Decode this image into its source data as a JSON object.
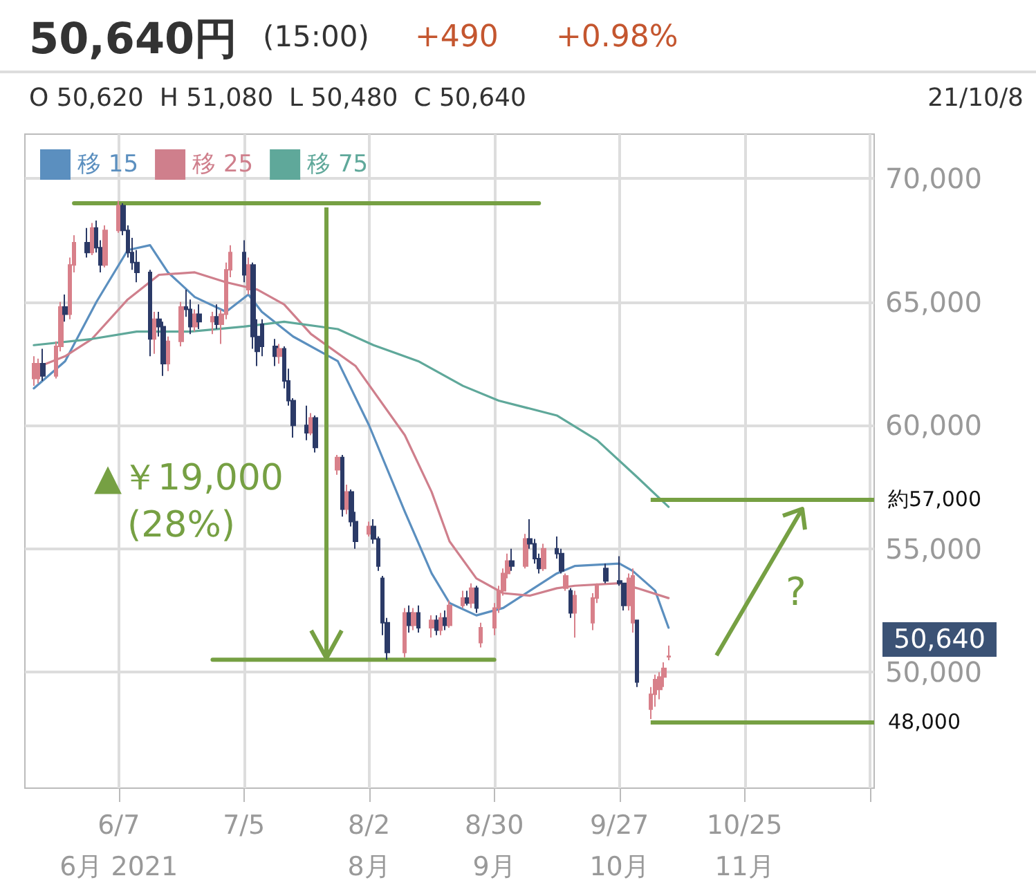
{
  "chart_data": {
    "type": "candlestick",
    "title": "50,640円",
    "subtitle": "O 50,620  H 51,080  L 50,480  C 50,640",
    "annotations": [
      "(15:00)",
      "+490",
      "+0.98%",
      "21/10/8",
      "▲￥19,000",
      "(28%)",
      "?",
      "50,640"
    ],
    "colors": [
      "#d8808a",
      "#d8808a",
      "#2b3a67",
      "#d8808a",
      "#d8808a",
      "#2b3a67",
      "#d8808a",
      "#d8808a",
      "#2b3a67",
      "#d8808a",
      "#2b3a67",
      "#2b3a67",
      "#d8808a",
      "#d8808a",
      "#2b3a67",
      "#2b3a67",
      "#2b3a67",
      "#2b3a67",
      "#2b3a67",
      "#d8808a",
      "#2b3a67",
      "#2b3a67",
      "#d8808a",
      "#d8808a",
      "#2b3a67",
      "#2b3a67",
      "#d8808a",
      "#2b3a67",
      "#d8808a",
      "#2b3a67",
      "#d8808a",
      "#d8808a",
      "#d8808a",
      "#2b3a67",
      "#d8808a",
      "#2b3a67",
      "#2b3a67",
      "#2b3a67",
      "#2b3a67",
      "#d8808a",
      "#2b3a67",
      "#2b3a67",
      "#2b3a67",
      "#2b3a67",
      "#d8808a",
      "#2b3a67",
      "#d8808a",
      "#2b3a67",
      "#d8808a",
      "#2b3a67",
      "#2b3a67",
      "#d8808a",
      "#2b3a67",
      "#2b3a67",
      "#2b3a67",
      "#2b3a67",
      "#d8808a",
      "#2b3a67",
      "#d8808a",
      "#2b3a67",
      "#d8808a",
      "#2b3a67",
      "#d8808a",
      "#2b3a67",
      "#d8808a",
      "#d8808a",
      "#2b3a67",
      "#d8808a",
      "#2b3a67",
      "#d8808a",
      "#d8808a",
      "#d8808a",
      "#d8808a",
      "#d8808a",
      "#2b3a67",
      "#d8808a",
      "#2b3a67",
      "#2b3a67",
      "#2b3a67",
      "#d8808a",
      "#2b3a67",
      "#2b3a67",
      "#d8808a",
      "#2b3a67",
      "#d8808a",
      "#d8808a",
      "#d8808a",
      "#2b3a67",
      "#2b3a67",
      "#2b3a67",
      "#d8808a",
      "#d8808a",
      "#2b3a67",
      "#d8808a",
      "#d8808a",
      "#d8808a",
      "#d8808a",
      "#d8808a"
    ],
    "x": [
      "2021-05-19",
      "2021-05-20",
      "2021-05-21",
      "2021-05-24",
      "2021-05-25",
      "2021-05-26",
      "2021-05-27",
      "2021-05-28",
      "2021-05-31",
      "2021-06-01",
      "2021-06-02",
      "2021-06-03",
      "2021-06-04",
      "2021-06-07",
      "2021-06-08",
      "2021-06-09",
      "2021-06-10",
      "2021-06-11",
      "2021-06-14",
      "2021-06-15",
      "2021-06-16",
      "2021-06-17",
      "2021-06-18",
      "2021-06-21",
      "2021-06-22",
      "2021-06-23",
      "2021-06-24",
      "2021-06-25",
      "2021-06-28",
      "2021-06-29",
      "2021-06-30",
      "2021-07-01",
      "2021-07-02",
      "2021-07-05",
      "2021-07-06",
      "2021-07-07",
      "2021-07-08",
      "2021-07-09",
      "2021-07-12",
      "2021-07-13",
      "2021-07-14",
      "2021-07-15",
      "2021-07-16",
      "2021-07-19",
      "2021-07-20",
      "2021-07-21",
      "2021-07-26",
      "2021-07-27",
      "2021-07-28",
      "2021-07-29",
      "2021-07-30",
      "2021-08-02",
      "2021-08-03",
      "2021-08-04",
      "2021-08-05",
      "2021-08-06",
      "2021-08-10",
      "2021-08-11",
      "2021-08-12",
      "2021-08-13",
      "2021-08-16",
      "2021-08-17",
      "2021-08-18",
      "2021-08-19",
      "2021-08-20",
      "2021-08-23",
      "2021-08-24",
      "2021-08-25",
      "2021-08-26",
      "2021-08-27",
      "2021-08-30",
      "2021-08-31",
      "2021-09-01",
      "2021-09-02",
      "2021-09-03",
      "2021-09-06",
      "2021-09-07",
      "2021-09-08",
      "2021-09-09",
      "2021-09-10",
      "2021-09-13",
      "2021-09-14",
      "2021-09-15",
      "2021-09-16",
      "2021-09-17",
      "2021-09-21",
      "2021-09-22",
      "2021-09-24",
      "2021-09-27",
      "2021-09-28",
      "2021-09-29",
      "2021-09-30",
      "2021-10-01",
      "2021-10-04",
      "2021-10-05",
      "2021-10-06",
      "2021-10-07",
      "2021-10-08"
    ],
    "ohlc": [
      [
        61900,
        62800,
        61600,
        62500
      ],
      [
        61900,
        62700,
        61700,
        62500
      ],
      [
        62500,
        63100,
        61800,
        62000
      ],
      [
        62000,
        63400,
        61900,
        63200
      ],
      [
        63200,
        65000,
        63000,
        64800
      ],
      [
        64800,
        65300,
        64200,
        64500
      ],
      [
        64500,
        66800,
        64300,
        66500
      ],
      [
        66500,
        67700,
        66200,
        67400
      ],
      [
        67400,
        68000,
        66800,
        67000
      ],
      [
        67000,
        68200,
        66900,
        68000
      ],
      [
        68000,
        68300,
        67000,
        67200
      ],
      [
        67200,
        67500,
        66200,
        66500
      ],
      [
        66500,
        68100,
        66400,
        67900
      ],
      [
        67900,
        69100,
        67800,
        68900
      ],
      [
        68900,
        69000,
        67700,
        67900
      ],
      [
        67900,
        68100,
        66800,
        67000
      ],
      [
        67000,
        67600,
        66300,
        66600
      ],
      [
        66600,
        67100,
        65800,
        66200
      ],
      [
        66200,
        66300,
        62800,
        63500
      ],
      [
        63500,
        64600,
        62900,
        64300
      ],
      [
        64300,
        64600,
        63600,
        64000
      ],
      [
        64000,
        64200,
        62000,
        62500
      ],
      [
        62500,
        63600,
        62200,
        63400
      ],
      [
        63400,
        65000,
        63200,
        64800
      ],
      [
        64800,
        65500,
        64400,
        64700
      ],
      [
        64700,
        65100,
        63700,
        64000
      ],
      [
        64000,
        64700,
        63800,
        64500
      ],
      [
        64500,
        64900,
        63900,
        64200
      ],
      [
        64200,
        64600,
        63700,
        64400
      ],
      [
        64400,
        64900,
        63900,
        64100
      ],
      [
        64100,
        64700,
        63300,
        64500
      ],
      [
        64500,
        66600,
        64300,
        66300
      ],
      [
        66300,
        67300,
        66000,
        67000
      ],
      [
        67000,
        67500,
        65800,
        66100
      ],
      [
        65500,
        66800,
        65300,
        66500
      ],
      [
        66500,
        66600,
        63100,
        63600
      ],
      [
        63600,
        64300,
        62400,
        63000
      ],
      [
        64100,
        64300,
        62800,
        63200
      ],
      [
        63200,
        63500,
        62400,
        62800
      ],
      [
        62800,
        63300,
        62500,
        63100
      ],
      [
        63100,
        63200,
        61500,
        61800
      ],
      [
        61800,
        62300,
        60800,
        61000
      ],
      [
        61000,
        61100,
        59500,
        60000
      ],
      [
        60000,
        60800,
        59400,
        59700
      ],
      [
        59700,
        60500,
        59600,
        60300
      ],
      [
        60300,
        60400,
        58900,
        59100
      ],
      [
        58200,
        58800,
        58000,
        58700
      ],
      [
        58700,
        58800,
        56300,
        56600
      ],
      [
        56600,
        57600,
        56400,
        57300
      ],
      [
        57300,
        57400,
        55900,
        56100
      ],
      [
        56100,
        56500,
        55000,
        55300
      ],
      [
        55600,
        56100,
        55500,
        55900
      ],
      [
        55900,
        56200,
        55200,
        55400
      ],
      [
        55400,
        55500,
        54100,
        54300
      ],
      [
        53800,
        53900,
        51500,
        52000
      ],
      [
        52000,
        52200,
        50500,
        50800
      ],
      [
        50800,
        52600,
        50600,
        52400
      ],
      [
        52400,
        52700,
        51600,
        51900
      ],
      [
        51900,
        52600,
        51700,
        52400
      ],
      [
        52400,
        52700,
        51600,
        51800
      ],
      [
        51800,
        52300,
        51400,
        52100
      ],
      [
        52100,
        52300,
        51500,
        51700
      ],
      [
        51700,
        52400,
        51500,
        52200
      ],
      [
        52200,
        52500,
        51700,
        51900
      ],
      [
        51900,
        52900,
        51800,
        52700
      ],
      [
        52700,
        53300,
        52600,
        53000
      ],
      [
        53000,
        53300,
        52700,
        52800
      ],
      [
        52800,
        53600,
        52600,
        53400
      ],
      [
        53400,
        53500,
        52400,
        52600
      ],
      [
        51200,
        52000,
        51000,
        51800
      ],
      [
        51800,
        52800,
        51500,
        52600
      ],
      [
        52600,
        53500,
        52400,
        53300
      ],
      [
        53300,
        54200,
        53100,
        54000
      ],
      [
        54000,
        54800,
        53800,
        54500
      ],
      [
        54500,
        55000,
        54100,
        54300
      ],
      [
        54300,
        55600,
        54200,
        55400
      ],
      [
        55400,
        56200,
        55000,
        55200
      ],
      [
        55200,
        55400,
        54400,
        54600
      ],
      [
        54600,
        54800,
        54000,
        54200
      ],
      [
        54200,
        55200,
        54100,
        55000
      ],
      [
        55000,
        55500,
        54600,
        54800
      ],
      [
        54800,
        55000,
        54000,
        54100
      ],
      [
        53400,
        54000,
        53300,
        53900
      ],
      [
        53300,
        53400,
        52200,
        52400
      ],
      [
        52400,
        53300,
        51400,
        53100
      ],
      [
        52000,
        53200,
        51700,
        53000
      ],
      [
        53000,
        53600,
        52800,
        53500
      ],
      [
        54200,
        54400,
        53600,
        53700
      ],
      [
        53700,
        54700,
        53500,
        53600
      ],
      [
        53600,
        53600,
        52500,
        52700
      ],
      [
        52700,
        54000,
        52500,
        53800
      ],
      [
        52000,
        54200,
        51600,
        53900
      ],
      [
        52100,
        52100,
        49400,
        49600
      ],
      [
        48500,
        49400,
        48100,
        49100
      ],
      [
        49100,
        49900,
        48600,
        49700
      ],
      [
        49300,
        50000,
        48900,
        49800
      ],
      [
        49800,
        50400,
        49400,
        50150
      ],
      [
        50620,
        51080,
        50480,
        50640
      ]
    ],
    "series": [
      {
        "type": "line",
        "name": "移 15",
        "color": "#5b8fbf",
        "x": [
          "2021-05-19",
          "2021-05-26",
          "2021-06-02",
          "2021-06-09",
          "2021-06-14",
          "2021-06-18",
          "2021-06-24",
          "2021-07-01",
          "2021-07-06",
          "2021-07-09",
          "2021-07-16",
          "2021-07-26",
          "2021-08-02",
          "2021-08-10",
          "2021-08-16",
          "2021-08-20",
          "2021-08-26",
          "2021-09-01",
          "2021-09-07",
          "2021-09-13",
          "2021-09-17",
          "2021-09-27",
          "2021-09-30",
          "2021-10-05",
          "2021-10-08"
        ],
        "values": [
          61500,
          62600,
          65000,
          67100,
          67300,
          66200,
          65200,
          64600,
          65300,
          64600,
          63600,
          62600,
          60000,
          56500,
          54000,
          52800,
          52300,
          52600,
          53300,
          54000,
          54300,
          54400,
          54100,
          53300,
          51800
        ]
      },
      {
        "type": "line",
        "name": "移 25",
        "color": "#cf7f8c",
        "x": [
          "2021-05-19",
          "2021-05-26",
          "2021-06-01",
          "2021-06-09",
          "2021-06-16",
          "2021-06-24",
          "2021-07-01",
          "2021-07-08",
          "2021-07-14",
          "2021-07-20",
          "2021-07-30",
          "2021-08-10",
          "2021-08-16",
          "2021-08-20",
          "2021-08-26",
          "2021-09-01",
          "2021-09-07",
          "2021-09-13",
          "2021-09-17",
          "2021-09-27",
          "2021-10-01",
          "2021-10-08"
        ],
        "values": [
          62300,
          62800,
          63500,
          65100,
          66100,
          66200,
          65800,
          65500,
          64900,
          63700,
          62400,
          59600,
          57300,
          55300,
          53800,
          53200,
          53100,
          53400,
          53500,
          53600,
          53400,
          53000
        ]
      },
      {
        "type": "line",
        "name": "移 75",
        "color": "#5fa89a",
        "x": [
          "2021-05-19",
          "2021-06-01",
          "2021-06-11",
          "2021-06-23",
          "2021-07-05",
          "2021-07-14",
          "2021-07-26",
          "2021-08-03",
          "2021-08-13",
          "2021-08-23",
          "2021-08-31",
          "2021-09-13",
          "2021-09-22",
          "2021-10-01",
          "2021-10-08"
        ],
        "values": [
          63250,
          63500,
          63800,
          63800,
          64000,
          64200,
          63900,
          63250,
          62600,
          61600,
          61000,
          60400,
          59400,
          57900,
          56700
        ]
      },
      {
        "type": "line",
        "color": "#76a043",
        "x": [
          "2021-05-28",
          "2021-09-09"
        ],
        "values": [
          69000,
          69000
        ]
      },
      {
        "type": "line",
        "color": "#76a043",
        "x": [
          "2021-06-28",
          "2021-08-30"
        ],
        "values": [
          50500,
          50500
        ]
      }
    ],
    "ref_lines": [
      {
        "axis": "y",
        "value": 57000,
        "label": "約57,000",
        "color": "#76a043"
      },
      {
        "axis": "y",
        "value": 48000,
        "label": "48,000",
        "color": "#76a043"
      }
    ],
    "xlim": [
      "2021-05-17",
      "2021-11-23"
    ],
    "xticks": [
      {
        "value": "2021-06-07",
        "label": "6/7\n6月 2021"
      },
      {
        "value": "2021-07-05",
        "label": "7/5"
      },
      {
        "value": "2021-08-02",
        "label": "8/2\n8月"
      },
      {
        "value": "2021-08-30",
        "label": "8/30\n9月"
      },
      {
        "value": "2021-09-27",
        "label": "9/27\n10月"
      },
      {
        "value": "2021-10-25",
        "label": "10/25\n11月"
      },
      {
        "value": "2021-11-22",
        "label": null
      }
    ],
    "ylim": [
      45300,
      71800
    ],
    "yticks": [
      {
        "value": 50000,
        "label": "50,000"
      },
      {
        "value": 55000,
        "label": "55,000"
      },
      {
        "value": 60000,
        "label": "60,000"
      },
      {
        "value": 65000,
        "label": "65,000"
      },
      {
        "value": 70000,
        "label": "70,000"
      }
    ],
    "grid": true,
    "legend": "top left",
    "marker": "none",
    "line_style": "solid"
  }
}
